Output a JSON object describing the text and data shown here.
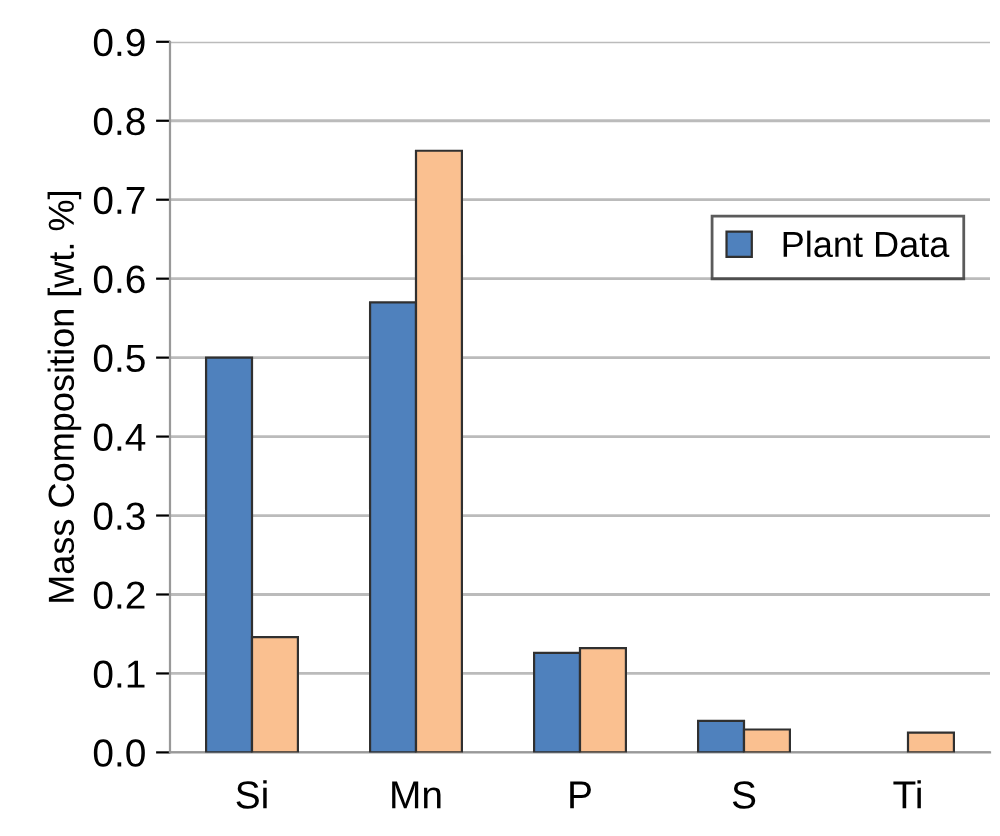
{
  "chart_data": {
    "type": "bar",
    "ylabel": "Mass Composition [wt. %]",
    "categories": [
      "Si",
      "Mn",
      "P",
      "S",
      "Ti"
    ],
    "series": [
      {
        "name": "Plant Data",
        "color": "#4f81bd",
        "values": [
          0.5,
          0.57,
          0.126,
          0.04,
          null
        ]
      },
      {
        "color": "#fac090",
        "values": [
          0.146,
          0.762,
          0.132,
          0.029,
          0.025
        ]
      }
    ],
    "ylim": [
      0,
      0.9
    ],
    "yticks": [
      {
        "value": 0,
        "label": "0.0"
      },
      0.1,
      0.2,
      0.3,
      0.4,
      0.5,
      0.6,
      0.7,
      0.8,
      0.9
    ],
    "grid": "y",
    "legend": "top right"
  }
}
